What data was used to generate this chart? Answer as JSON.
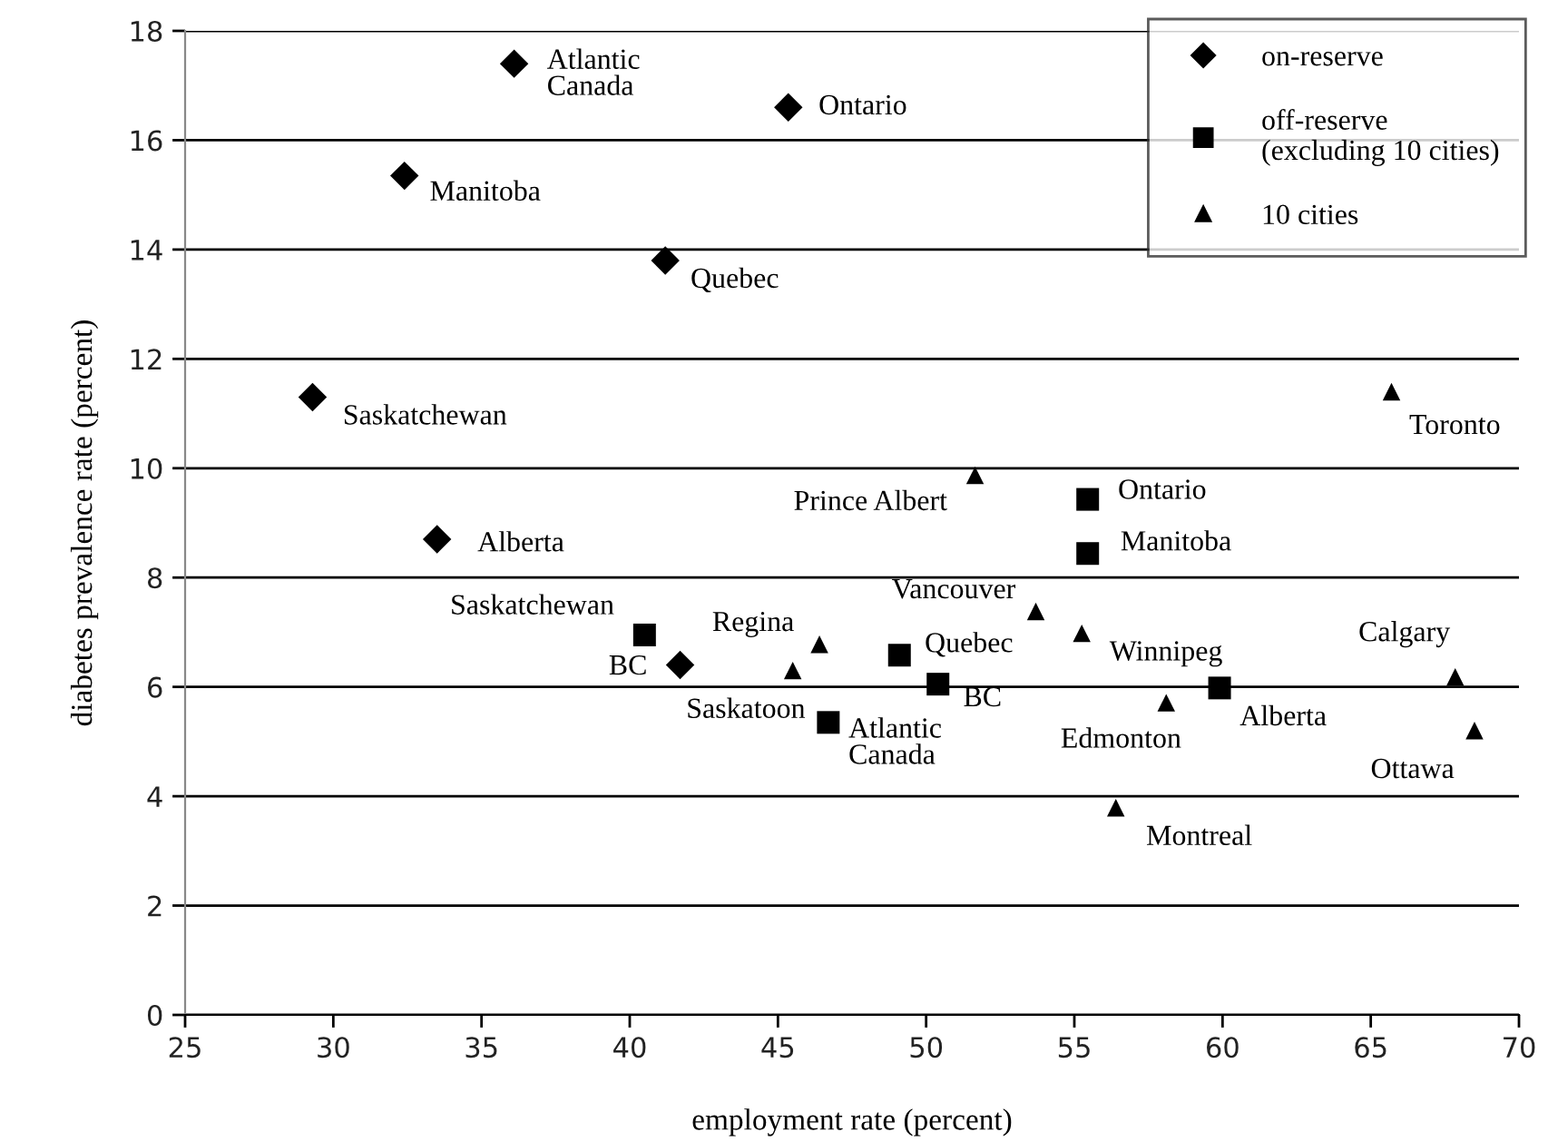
{
  "chart_data": {
    "type": "scatter",
    "xlabel": "employment rate (percent)",
    "ylabel": "diabetes prevalence rate (percent)",
    "xlim": [
      25,
      70
    ],
    "xticks": [
      25,
      30,
      35,
      40,
      45,
      50,
      55,
      60,
      65,
      70
    ],
    "ylim": [
      0,
      18
    ],
    "yticks": [
      0,
      2,
      4,
      6,
      8,
      10,
      12,
      14,
      16,
      18
    ],
    "grid": "y",
    "legend": "top right",
    "series": [
      {
        "name": "on-reserve",
        "color": "#000000",
        "marker": "diamond",
        "x": [
          36.1,
          45.35,
          32.4,
          41.2,
          29.3,
          33.5,
          41.7
        ],
        "values": [
          17.4,
          16.6,
          15.35,
          13.8,
          11.3,
          8.7,
          6.4
        ]
      },
      {
        "name": "off-reserve\n(excluding 10 cities)",
        "color": "#000000",
        "marker": "square",
        "x": [
          40.5,
          55.45,
          55.45,
          49.1,
          50.4,
          46.7,
          59.9
        ],
        "values": [
          6.95,
          9.43,
          8.44,
          6.58,
          6.05,
          5.35,
          5.98
        ]
      },
      {
        "name": "10 cities",
        "color": "#000000",
        "marker": "triangle",
        "x": [
          51.65,
          65.7,
          53.7,
          46.4,
          55.25,
          45.5,
          67.85,
          58.1,
          68.5,
          56.4
        ],
        "values": [
          9.87,
          11.4,
          7.38,
          6.78,
          6.98,
          6.3,
          6.18,
          5.71,
          5.2,
          3.79
        ]
      }
    ],
    "annotations": [
      {
        "text": "Atlantic\nCanada",
        "x": 36.1,
        "y": 17.4
      },
      {
        "text": "Ontario",
        "x": 45.35,
        "y": 16.6
      },
      {
        "text": "Manitoba",
        "x": 32.4,
        "y": 15.35
      },
      {
        "text": "Quebec",
        "x": 41.2,
        "y": 13.8
      },
      {
        "text": "Saskatchewan",
        "x": 29.3,
        "y": 11.3
      },
      {
        "text": "Alberta",
        "x": 33.5,
        "y": 8.7
      },
      {
        "text": "BC",
        "x": 41.7,
        "y": 6.4
      },
      {
        "text": "Saskatchewan",
        "x": 40.5,
        "y": 6.95
      },
      {
        "text": "Ontario",
        "x": 55.45,
        "y": 9.43
      },
      {
        "text": "Manitoba",
        "x": 55.45,
        "y": 8.44
      },
      {
        "text": "Quebec",
        "x": 49.1,
        "y": 6.58
      },
      {
        "text": "BC",
        "x": 50.4,
        "y": 6.05
      },
      {
        "text": "Atlantic\nCanada",
        "x": 46.7,
        "y": 5.35
      },
      {
        "text": "Alberta",
        "x": 59.9,
        "y": 5.98
      },
      {
        "text": "Prince Albert",
        "x": 51.65,
        "y": 9.87
      },
      {
        "text": "Toronto",
        "x": 65.7,
        "y": 11.4
      },
      {
        "text": "Vancouver",
        "x": 53.7,
        "y": 7.38
      },
      {
        "text": "Regina",
        "x": 46.4,
        "y": 6.78
      },
      {
        "text": "Winnipeg",
        "x": 55.25,
        "y": 6.98
      },
      {
        "text": "Saskatoon",
        "x": 45.5,
        "y": 6.3
      },
      {
        "text": "Calgary",
        "x": 67.85,
        "y": 6.18
      },
      {
        "text": "Edmonton",
        "x": 58.1,
        "y": 5.71
      },
      {
        "text": "Ottawa",
        "x": 68.5,
        "y": 5.2
      },
      {
        "text": "Montreal",
        "x": 56.4,
        "y": 3.79
      }
    ]
  }
}
